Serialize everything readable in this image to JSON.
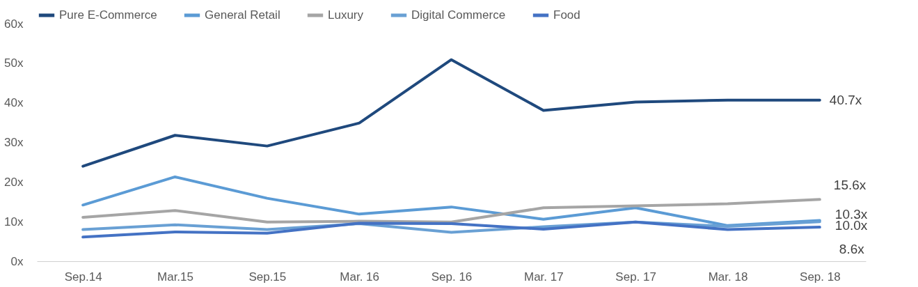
{
  "chart_data": {
    "type": "line",
    "categories": [
      "Sep.14",
      "Mar.15",
      "Sep.15",
      "Mar. 16",
      "Sep. 16",
      "Mar. 17",
      "Sep. 17",
      "Mar. 18",
      "Sep. 18"
    ],
    "series": [
      {
        "name": "Pure E-Commerce",
        "color": "#1f497d",
        "values": [
          24.0,
          31.8,
          29.1,
          34.9,
          50.9,
          38.1,
          40.2,
          40.7,
          40.7
        ]
      },
      {
        "name": "General Retail",
        "color": "#5b9bd5",
        "values": [
          14.2,
          21.3,
          15.9,
          11.9,
          13.7,
          10.6,
          13.5,
          9.0,
          10.3
        ]
      },
      {
        "name": "Luxury",
        "color": "#a5a5a5",
        "values": [
          11.1,
          12.8,
          9.9,
          10.1,
          9.9,
          13.5,
          14.0,
          14.5,
          15.6
        ]
      },
      {
        "name": "Digital Commerce",
        "color": "#69a0d4",
        "values": [
          8.0,
          9.2,
          8.0,
          9.5,
          7.3,
          8.7,
          9.9,
          8.8,
          10.0
        ]
      },
      {
        "name": "Food",
        "color": "#4472c4",
        "values": [
          6.1,
          7.4,
          7.1,
          9.6,
          9.5,
          8.1,
          9.9,
          8.0,
          8.6
        ]
      }
    ],
    "ylim": [
      0,
      60
    ],
    "yticks": [
      {
        "value": 0,
        "label": "0x"
      },
      {
        "value": 10,
        "label": "10x"
      },
      {
        "value": 20,
        "label": "20x"
      },
      {
        "value": 30,
        "label": "30x"
      },
      {
        "value": 40,
        "label": "40x"
      },
      {
        "value": 50,
        "label": "50x"
      },
      {
        "value": 60,
        "label": "60x"
      }
    ],
    "annotations": [
      {
        "text": "40.7x",
        "x": "Sep. 18",
        "y": 40.7
      },
      {
        "text": "15.6x",
        "x": "Sep. 18",
        "y": 15.6
      },
      {
        "text": "10.3x",
        "x": "Sep. 18",
        "y": 10.3
      },
      {
        "text": "10.0x",
        "x": "Sep. 18",
        "y": 10.0
      },
      {
        "text": "8.6x",
        "x": "Sep. 18",
        "y": 8.6
      }
    ],
    "legend": "top",
    "grid": false,
    "line_style": "solid",
    "marker": "none"
  }
}
